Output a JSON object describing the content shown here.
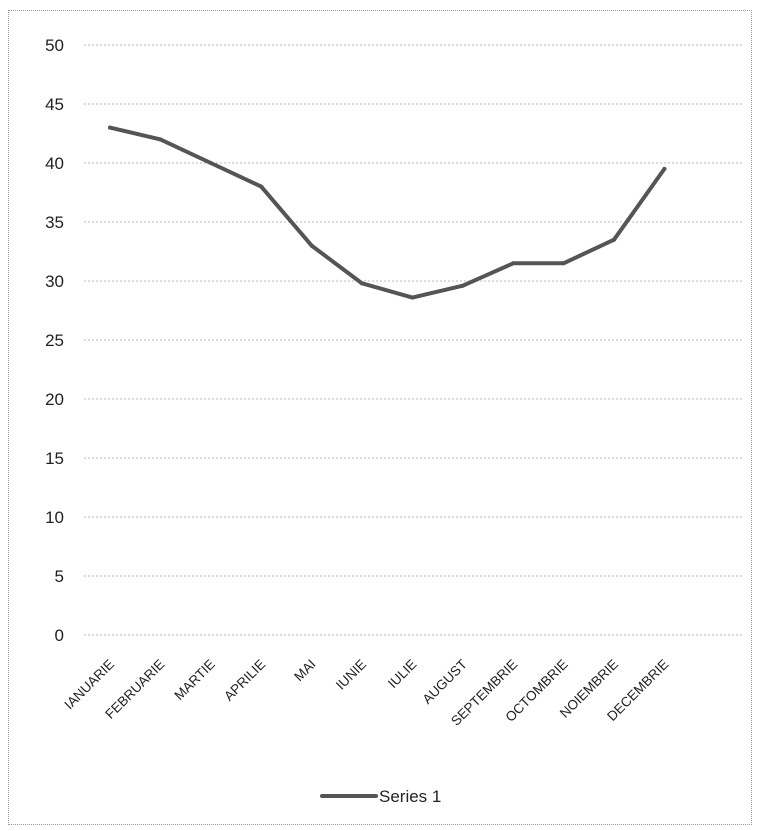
{
  "chart_data": {
    "type": "line",
    "categories": [
      "IANUARIE",
      "FEBRUARIE",
      "MARTIE",
      "APRILIE",
      "MAI",
      "IUNIE",
      "IULIE",
      "AUGUST",
      "SEPTEMBRIE",
      "OCTOMBRIE",
      "NOIEMBRIE",
      "DECEMBRIE"
    ],
    "series": [
      {
        "name": "Series 1",
        "values": [
          43,
          42,
          40,
          38,
          33,
          29.8,
          28.6,
          29.6,
          31.5,
          31.5,
          33.5,
          39.5
        ]
      }
    ],
    "title": "",
    "xlabel": "",
    "ylabel": "",
    "ylim": [
      0,
      50
    ],
    "yticks": [
      0,
      5,
      10,
      15,
      20,
      25,
      30,
      35,
      40,
      45,
      50
    ],
    "grid": true,
    "legend": "bottom",
    "line_color": "#555555"
  }
}
